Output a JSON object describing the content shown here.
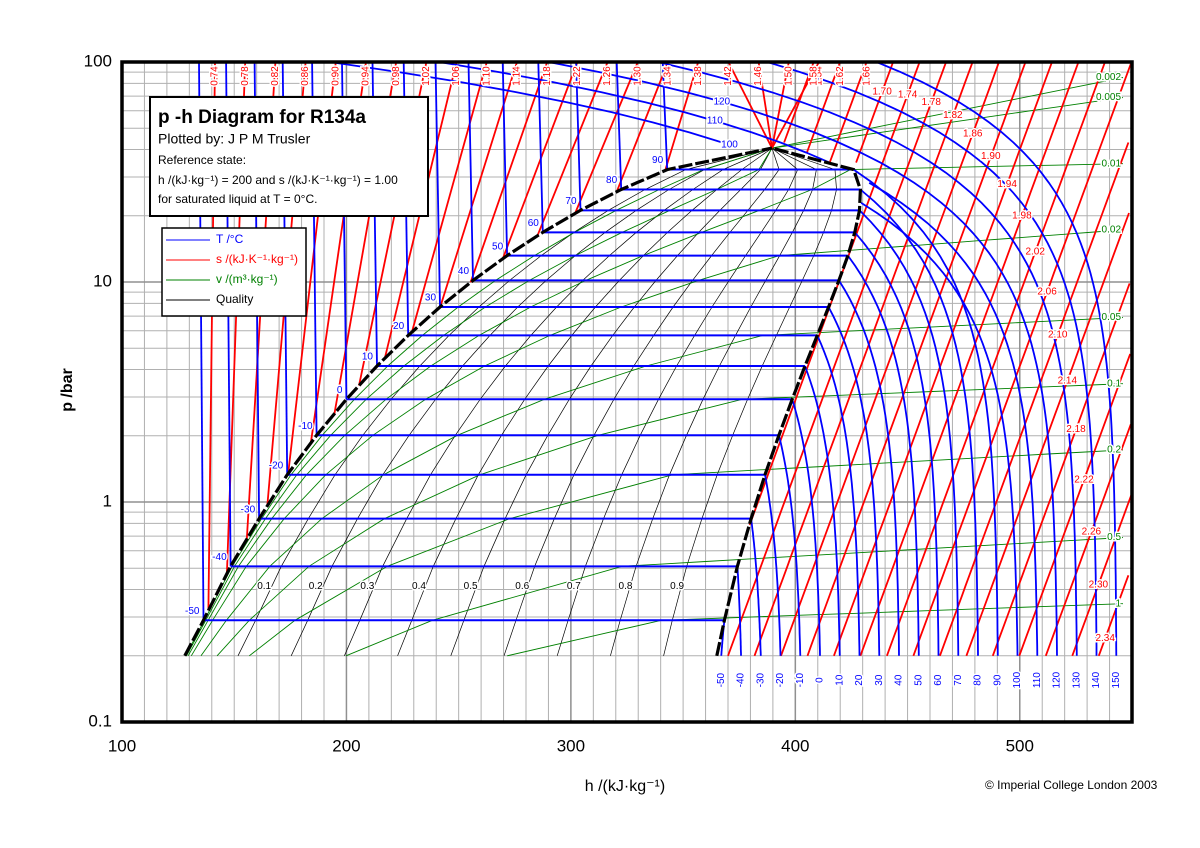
{
  "chart_data": {
    "type": "ph-diagram",
    "title": "p -h Diagram for R134a",
    "subtitle": "Plotted by: J P M Trusler",
    "reference": [
      "Reference state:",
      "h /(kJ·kg⁻¹) = 200 and s /(kJ·K⁻¹·kg⁻¹) = 1.00",
      "for saturated liquid at T = 0°C."
    ],
    "xlabel": "h /(kJ·kg⁻¹)",
    "ylabel": "p /bar",
    "copyright": "© Imperial College London 2003",
    "xlim": [
      100,
      550
    ],
    "xticks": [
      100,
      200,
      300,
      400,
      500
    ],
    "ylim": [
      0.1,
      100
    ],
    "yticks": [
      0.1,
      1,
      10,
      100
    ],
    "log_y": true,
    "grid": true,
    "series": [
      {
        "name": "T /°C",
        "color": "#0000ff",
        "labels": [
          -50,
          -40,
          -30,
          -20,
          -10,
          0,
          10,
          20,
          30,
          40,
          50,
          60,
          70,
          80,
          90,
          100,
          110,
          120,
          130,
          140,
          150
        ]
      },
      {
        "name": "s /(kJ·K⁻¹·kg⁻¹)",
        "color": "#ff0000",
        "labels": [
          "0.74",
          "0.78",
          "0.82",
          "0.86",
          "0.90",
          "0.94",
          "0.98",
          "1.02",
          "1.06",
          "1.10",
          "1.14",
          "1.18",
          "1.22",
          "1.26",
          "1.30",
          "1.34",
          "1.38",
          "1.42",
          "1.46",
          "1.50",
          "1.54",
          "1.58",
          "1.62",
          "1.66",
          "1.70",
          "1.74",
          "1.78",
          "1.82",
          "1.86",
          "1.90",
          "1.94",
          "1.98",
          "2.02",
          "2.06",
          "2.10",
          "2.14",
          "2.18",
          "2.22",
          "2.26",
          "2.30",
          "2.34"
        ]
      },
      {
        "name": "v /(m³·kg⁻¹)",
        "color": "#008000",
        "labels": [
          0.002,
          0.005,
          0.01,
          0.02,
          0.05,
          0.1,
          0.2,
          0.5,
          1
        ]
      },
      {
        "name": "Quality",
        "color": "#000000",
        "labels": [
          0.1,
          0.2,
          0.3,
          0.4,
          0.5,
          0.6,
          0.7,
          0.8,
          0.9
        ]
      }
    ],
    "saturation": {
      "p": [
        0.2,
        0.29,
        0.51,
        0.84,
        1.33,
        2.01,
        2.93,
        4.15,
        5.72,
        7.7,
        10.17,
        13.18,
        16.82,
        21.17,
        26.33,
        32.44,
        40.6
      ],
      "h_liquid": [
        128,
        136.3,
        148.4,
        161.1,
        173.6,
        186.7,
        200,
        213.6,
        227.5,
        241.7,
        256.4,
        271.6,
        287.5,
        304.3,
        322.4,
        342.9,
        389.6
      ],
      "h_vapour": [
        365,
        368.4,
        374.2,
        380.3,
        386.5,
        392.7,
        398.6,
        404.3,
        409.8,
        414.8,
        419.4,
        423.4,
        426.5,
        428.6,
        429.0,
        426.0,
        389.6
      ]
    }
  }
}
